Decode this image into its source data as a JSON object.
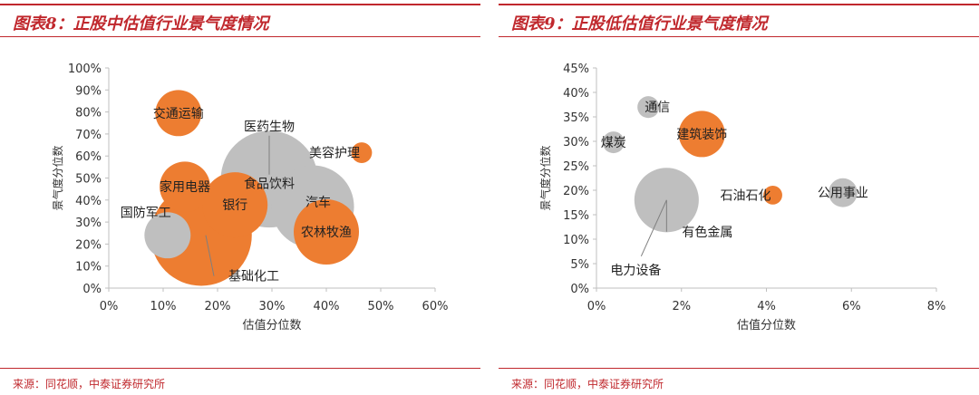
{
  "charts": [
    {
      "title": "图表8：正股中估值行业景气度情况",
      "source": "来源：同花顺，中泰证券研究所",
      "colors": {
        "accent": "#c0282d",
        "orange": "#ed7d31",
        "gray": "#bfbfbf"
      },
      "chart_data": {
        "type": "scatter",
        "xlabel": "估值分位数",
        "ylabel": "景气度分位数",
        "xlim": [
          0,
          0.6
        ],
        "ylim": [
          0,
          1.0
        ],
        "x_ticks": [
          0,
          0.1,
          0.2,
          0.3,
          0.4,
          0.5,
          0.6
        ],
        "y_ticks": [
          0,
          0.1,
          0.2,
          0.3,
          0.4,
          0.5,
          0.6,
          0.7,
          0.8,
          0.9,
          1.0
        ],
        "x_tick_labels": [
          "0%",
          "10%",
          "20%",
          "30%",
          "40%",
          "50%",
          "60%"
        ],
        "y_tick_labels": [
          "0%",
          "10%",
          "20%",
          "30%",
          "40%",
          "50%",
          "60%",
          "70%",
          "80%",
          "90%",
          "100%"
        ],
        "grid": false,
        "points": [
          {
            "name": "交通运输",
            "x": 0.128,
            "y": 0.795,
            "size": 0.5,
            "color": "orange"
          },
          {
            "name": "医药生物",
            "x": 0.295,
            "y": 0.495,
            "size": 2.2,
            "color": "gray"
          },
          {
            "name": "美容护理",
            "x": 0.465,
            "y": 0.615,
            "size": 0.1,
            "color": "orange"
          },
          {
            "name": "家用电器",
            "x": 0.14,
            "y": 0.46,
            "size": 0.6,
            "color": "orange"
          },
          {
            "name": "食品饮料",
            "x": 0.295,
            "y": 0.495,
            "size": 0,
            "color": "gray"
          },
          {
            "name": "银行",
            "x": 0.232,
            "y": 0.378,
            "size": 1.0,
            "color": "orange"
          },
          {
            "name": "汽车",
            "x": 0.375,
            "y": 0.37,
            "size": 1.6,
            "color": "gray"
          },
          {
            "name": "国防军工",
            "x": 0.108,
            "y": 0.24,
            "size": 0.5,
            "color": "gray"
          },
          {
            "name": "农林牧渔",
            "x": 0.4,
            "y": 0.255,
            "size": 1.0,
            "color": "orange"
          },
          {
            "name": "基础化工",
            "x": 0.17,
            "y": 0.24,
            "size": 2.4,
            "color": "orange"
          }
        ]
      }
    },
    {
      "title": "图表9：正股低估值行业景气度情况",
      "source": "来源：同花顺，中泰证券研究所",
      "colors": {
        "accent": "#c0282d",
        "orange": "#ed7d31",
        "gray": "#bfbfbf"
      },
      "chart_data": {
        "type": "scatter",
        "xlabel": "估值分位数",
        "ylabel": "景气度分位数",
        "xlim": [
          0,
          0.08
        ],
        "ylim": [
          0,
          0.45
        ],
        "x_ticks": [
          0,
          0.02,
          0.04,
          0.06,
          0.08
        ],
        "y_ticks": [
          0,
          0.05,
          0.1,
          0.15,
          0.2,
          0.25,
          0.3,
          0.35,
          0.4,
          0.45
        ],
        "x_tick_labels": [
          "0%",
          "2%",
          "4%",
          "6%",
          "8%"
        ],
        "y_tick_labels": [
          "0%",
          "5%",
          "10%",
          "15%",
          "20%",
          "25%",
          "30%",
          "35%",
          "40%",
          "45%"
        ],
        "grid": false,
        "points": [
          {
            "name": "通信",
            "x": 0.0122,
            "y": 0.37,
            "size": 0.4,
            "color": "gray"
          },
          {
            "name": "煤炭",
            "x": 0.004,
            "y": 0.298,
            "size": 0.4,
            "color": "gray"
          },
          {
            "name": "建筑装饰",
            "x": 0.0248,
            "y": 0.315,
            "size": 1.8,
            "color": "orange"
          },
          {
            "name": "石油石化",
            "x": 0.0415,
            "y": 0.19,
            "size": 0.3,
            "color": "orange"
          },
          {
            "name": "公用事业",
            "x": 0.058,
            "y": 0.195,
            "size": 0.7,
            "color": "gray"
          },
          {
            "name": "有色金属",
            "x": 0.0165,
            "y": 0.18,
            "size": 3.5,
            "color": "gray"
          },
          {
            "name": "电力设备",
            "x": 0.0165,
            "y": 0.18,
            "size": 0,
            "color": "gray"
          }
        ]
      }
    }
  ]
}
